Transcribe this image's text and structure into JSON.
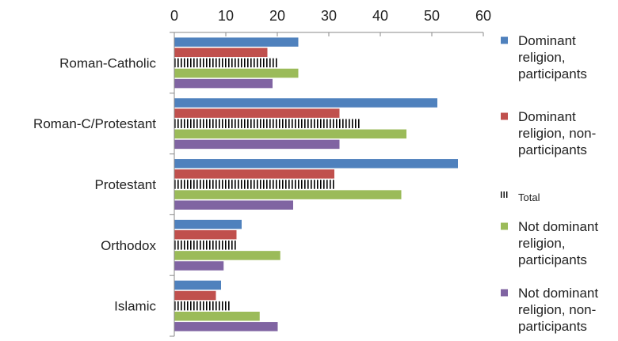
{
  "chart_data": {
    "type": "bar",
    "orientation": "horizontal",
    "categories": [
      "Roman-Catholic",
      "Roman-C/Protestant",
      "Protestant",
      "Orthodox",
      "Islamic"
    ],
    "series": [
      {
        "name": "Dominant religion, participants",
        "color": "#4f81bd",
        "values": [
          24,
          51,
          55,
          13,
          9
        ]
      },
      {
        "name": "Dominant religion, non-participants",
        "color": "#c0504d",
        "values": [
          18,
          32,
          31,
          12,
          8
        ]
      },
      {
        "name": "Total",
        "pattern": "vertical-stripes",
        "color": "#000000",
        "values": [
          20,
          36,
          31,
          12,
          11
        ]
      },
      {
        "name": "Not dominant religion, participants",
        "color": "#9bbb59",
        "values": [
          24,
          45,
          44,
          20.5,
          16.5
        ]
      },
      {
        "name": "Not dominant religion, non-participants",
        "color": "#8064a2",
        "values": [
          19,
          32,
          23,
          9.5,
          20
        ]
      }
    ],
    "xlim": [
      0,
      60
    ],
    "x_ticks": [
      "0",
      "10",
      "20",
      "30",
      "40",
      "50",
      "60"
    ],
    "axis_position": "top",
    "grid": false,
    "legend_position": "right",
    "legend_lines": [
      [
        "Dominant",
        "religion,",
        "participants"
      ],
      [
        "Dominant",
        "religion, non-",
        "participants"
      ],
      [
        "Total"
      ],
      [
        "Not dominant",
        "religion,",
        "participants"
      ],
      [
        "Not dominant",
        "religion, non-",
        "participants"
      ]
    ]
  }
}
